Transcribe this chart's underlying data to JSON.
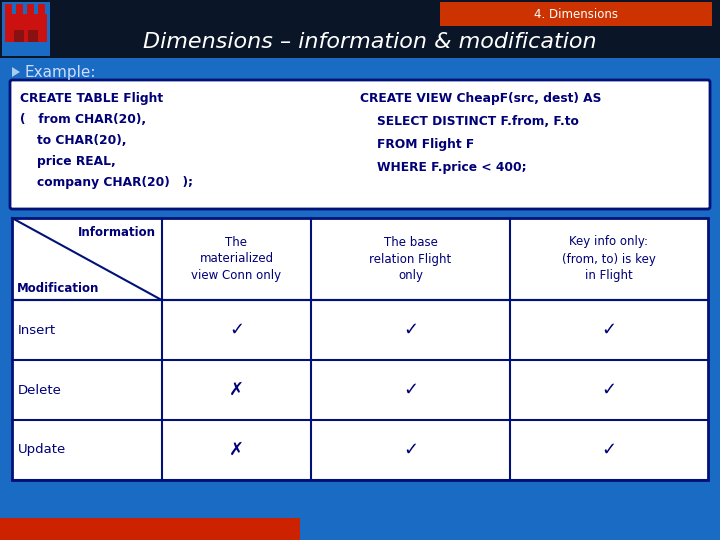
{
  "title": "Dimensions – information & modification",
  "section_label": "4. Dimensions",
  "bg_color": "#1A6BC4",
  "header_bg": "#0a1628",
  "section_bar_color_left": "#CC2200",
  "section_bar_color_right": "#882200",
  "title_color": "#FFFFFF",
  "bullet_text": "Example:",
  "bullet_color": "#CCDDFF",
  "code_left_lines": [
    "CREATE TABLE Flight",
    "(   from CHAR(20),",
    "    to CHAR(20),",
    "    price REAL,",
    "    company CHAR(20)   );"
  ],
  "code_right_lines": [
    "CREATE VIEW CheapF(src, dest) AS",
    "    SELECT DISTINCT F.from, F.to",
    "    FROM Flight F",
    "    WHERE F.price < 400;"
  ],
  "table_col2": "The\nmaterialized\nview Conn only",
  "table_col3": "The base\nrelation Flight\nonly",
  "table_col4": "Key info only:\n(from, to) is key\nin Flight",
  "table_rows": [
    [
      "Insert",
      "✓",
      "✓",
      "✓"
    ],
    [
      "Delete",
      "✗",
      "✓",
      "✓"
    ],
    [
      "Update",
      "✗",
      "✓",
      "✓"
    ]
  ],
  "table_bg": "#FFFFFF",
  "table_border_color": "#001177",
  "code_box_bg": "#FFFFFF",
  "code_text_color": "#000077",
  "cell_text_color": "#000077"
}
